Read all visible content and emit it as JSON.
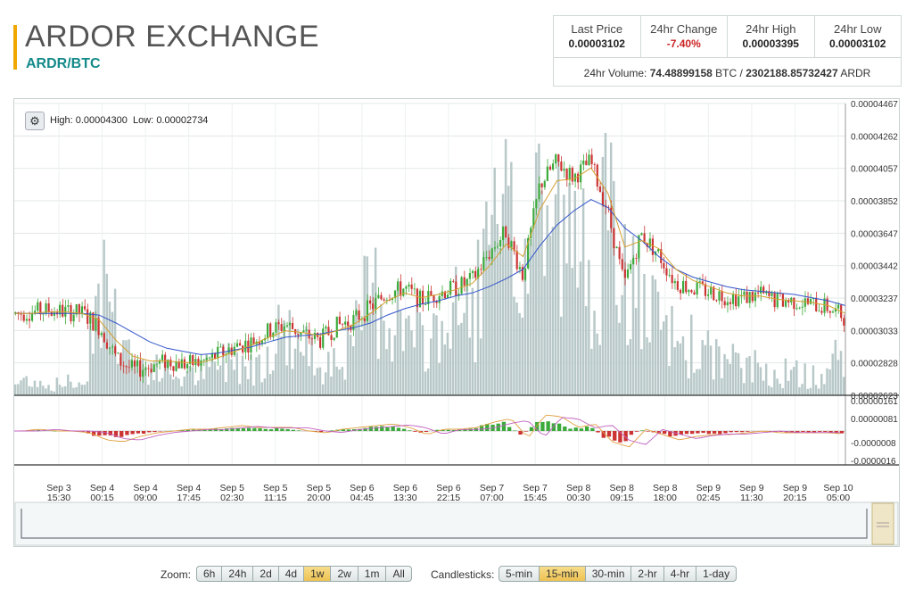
{
  "header": {
    "title": "ARDOR EXCHANGE",
    "pair": "ARDR/BTC"
  },
  "stats": {
    "last_price_label": "Last Price",
    "last_price": "0.00003102",
    "change_label": "24hr Change",
    "change": "-7.40%",
    "high_label": "24hr High",
    "high": "0.00003395",
    "low_label": "24hr Low",
    "low": "0.00003102",
    "volume_label": "24hr Volume:",
    "volume_btc": "74.48899158",
    "btc_unit": "BTC",
    "sep": "/",
    "volume_ardr": "2302188.85732427",
    "ardr_unit": "ARDR"
  },
  "chart_info": {
    "high_label": "High:",
    "high": "0.00004300",
    "low_label": "Low:",
    "low": "0.00002734"
  },
  "colors": {
    "up": "#3aaa3a",
    "down": "#cc3333",
    "ema_slow": "#3355cc",
    "ema_fast": "#d4a030",
    "volume": "#b8c8c8",
    "accent": "#f0a800"
  },
  "chart_data": {
    "type": "line",
    "price_axis_ticks": [
      "0.00004467",
      "0.00004262",
      "0.00004057",
      "0.00003852",
      "0.00003647",
      "0.00003442",
      "0.00003237",
      "0.00003033",
      "0.00002828",
      "0.00002623"
    ],
    "macd_axis_ticks": [
      "0.00000161",
      "0.00000081",
      "-0.0000008",
      "-0.0000016"
    ],
    "x_ticks": [
      [
        "Sep 3",
        "15:30"
      ],
      [
        "Sep 4",
        "00:15"
      ],
      [
        "Sep 4",
        "09:00"
      ],
      [
        "Sep 4",
        "17:45"
      ],
      [
        "Sep 5",
        "02:30"
      ],
      [
        "Sep 5",
        "11:15"
      ],
      [
        "Sep 5",
        "20:00"
      ],
      [
        "Sep 6",
        "04:45"
      ],
      [
        "Sep 6",
        "13:30"
      ],
      [
        "Sep 6",
        "22:15"
      ],
      [
        "Sep 7",
        "07:00"
      ],
      [
        "Sep 7",
        "15:45"
      ],
      [
        "Sep 8",
        "00:30"
      ],
      [
        "Sep 8",
        "09:15"
      ],
      [
        "Sep 8",
        "18:00"
      ],
      [
        "Sep 9",
        "02:45"
      ],
      [
        "Sep 9",
        "11:30"
      ],
      [
        "Sep 9",
        "20:15"
      ],
      [
        "Sep 10",
        "05:00"
      ]
    ],
    "ylim": [
      2.623e-05,
      4.467e-05
    ],
    "price_series": [
      3.14e-05,
      3.15e-05,
      3.16e-05,
      3.15e-05,
      3.14e-05,
      3.05e-05,
      2.85e-05,
      2.78e-05,
      2.81e-05,
      2.84e-05,
      2.82e-05,
      2.83e-05,
      2.88e-05,
      2.93e-05,
      2.96e-05,
      3.03e-05,
      3.07e-05,
      3.01e-05,
      2.97e-05,
      3.06e-05,
      3.1e-05,
      3.18e-05,
      3.27e-05,
      3.3e-05,
      3.22e-05,
      3.27e-05,
      3.3e-05,
      3.35e-05,
      3.52e-05,
      3.66e-05,
      3.38e-05,
      3.95e-05,
      4.1e-05,
      4e-05,
      4.1e-05,
      3.8e-05,
      3.32e-05,
      3.64e-05,
      3.52e-05,
      3.34e-05,
      3.3e-05,
      3.28e-05,
      3.25e-05,
      3.24e-05,
      3.26e-05,
      3.22e-05,
      3.22e-05,
      3.2e-05,
      3.18e-05,
      3.12e-05
    ],
    "ema_slow": [
      3.14e-05,
      3.14e-05,
      3.14e-05,
      3.14e-05,
      3.14e-05,
      3.13e-05,
      3.08e-05,
      3.02e-05,
      2.96e-05,
      2.92e-05,
      2.9e-05,
      2.88e-05,
      2.89e-05,
      2.91e-05,
      2.93e-05,
      2.96e-05,
      2.99e-05,
      3e-05,
      3.01e-05,
      3.03e-05,
      3.05e-05,
      3.08e-05,
      3.13e-05,
      3.17e-05,
      3.2e-05,
      3.22e-05,
      3.25e-05,
      3.27e-05,
      3.31e-05,
      3.36e-05,
      3.42e-05,
      3.57e-05,
      3.7e-05,
      3.79e-05,
      3.86e-05,
      3.81e-05,
      3.68e-05,
      3.6e-05,
      3.5e-05,
      3.42e-05,
      3.37e-05,
      3.34e-05,
      3.31e-05,
      3.29e-05,
      3.28e-05,
      3.27e-05,
      3.26e-05,
      3.24e-05,
      3.22e-05,
      3.19e-05
    ],
    "ema_fast": [
      3.14e-05,
      3.14e-05,
      3.15e-05,
      3.15e-05,
      3.14e-05,
      3.1e-05,
      2.97e-05,
      2.87e-05,
      2.84e-05,
      2.84e-05,
      2.83e-05,
      2.83e-05,
      2.86e-05,
      2.9e-05,
      2.94e-05,
      2.99e-05,
      3.03e-05,
      3.02e-05,
      3e-05,
      3.03e-05,
      3.07e-05,
      3.14e-05,
      3.22e-05,
      3.27e-05,
      3.24e-05,
      3.26e-05,
      3.29e-05,
      3.33e-05,
      3.44e-05,
      3.58e-05,
      3.5e-05,
      3.8e-05,
      3.98e-05,
      3.99e-05,
      4.06e-05,
      3.9e-05,
      3.56e-05,
      3.6e-05,
      3.55e-05,
      3.42e-05,
      3.35e-05,
      3.31e-05,
      3.27e-05,
      3.25e-05,
      3.25e-05,
      3.23e-05,
      3.22e-05,
      3.21e-05,
      3.19e-05,
      3.14e-05
    ],
    "volume_series": [
      0.05,
      0.08,
      0.04,
      0.06,
      0.05,
      0.55,
      0.35,
      0.15,
      0.12,
      0.1,
      0.08,
      0.1,
      0.14,
      0.18,
      0.12,
      0.22,
      0.3,
      0.2,
      0.15,
      0.18,
      0.22,
      0.48,
      0.4,
      0.3,
      0.22,
      0.3,
      0.35,
      0.38,
      0.62,
      0.7,
      0.55,
      0.92,
      0.75,
      0.6,
      0.65,
      0.72,
      0.55,
      0.4,
      0.3,
      0.25,
      0.22,
      0.18,
      0.15,
      0.13,
      0.12,
      0.1,
      0.1,
      0.08,
      0.09,
      0.25
    ],
    "macd_histogram": [
      0.0,
      0.1,
      0.0,
      0.0,
      -0.1,
      -0.5,
      -0.6,
      -0.3,
      -0.1,
      0.0,
      0.1,
      0.1,
      0.2,
      0.3,
      0.2,
      0.2,
      0.2,
      0.0,
      -0.1,
      0.1,
      0.2,
      0.3,
      0.4,
      0.2,
      -0.2,
      0.1,
      0.1,
      0.2,
      0.5,
      0.7,
      -0.4,
      0.9,
      0.8,
      0.2,
      0.4,
      -0.6,
      -0.9,
      0.1,
      -0.2,
      -0.5,
      -0.3,
      -0.2,
      -0.2,
      -0.1,
      0.0,
      -0.1,
      -0.1,
      -0.1,
      -0.1,
      -0.2
    ]
  },
  "controls": {
    "zoom_label": "Zoom:",
    "zoom": [
      "6h",
      "24h",
      "2d",
      "4d",
      "1w",
      "2w",
      "1m",
      "All"
    ],
    "zoom_active": "1w",
    "candles_label": "Candlesticks:",
    "candles": [
      "5-min",
      "15-min",
      "30-min",
      "2-hr",
      "4-hr",
      "1-day"
    ],
    "candles_active": "15-min"
  }
}
